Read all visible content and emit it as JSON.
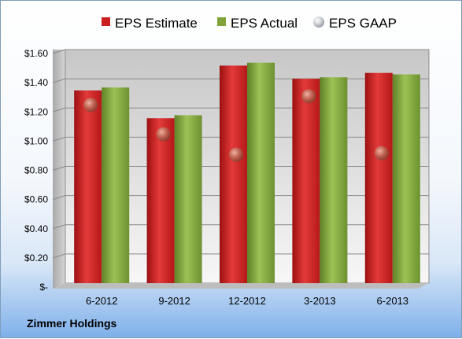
{
  "company": "Zimmer Holdings",
  "chart_data": {
    "type": "bar",
    "categories": [
      "6-2012",
      "9-2012",
      "12-2012",
      "3-2013",
      "6-2013"
    ],
    "series": [
      {
        "name": "EPS Estimate",
        "type": "bar",
        "color": "#cc1f1f",
        "values": [
          1.32,
          1.13,
          1.49,
          1.4,
          1.44
        ]
      },
      {
        "name": "EPS Actual",
        "type": "bar",
        "color": "#7fa33a",
        "values": [
          1.34,
          1.15,
          1.51,
          1.41,
          1.43
        ]
      },
      {
        "name": "EPS GAAP",
        "type": "scatter",
        "color": "#b3b9c2",
        "values": [
          1.22,
          1.02,
          0.88,
          1.28,
          0.89
        ]
      }
    ],
    "ylim": [
      0,
      1.6
    ],
    "yticks": [
      0,
      0.2,
      0.4,
      0.6,
      0.8,
      1.0,
      1.2,
      1.4,
      1.6
    ],
    "ytick_labels": [
      "$-",
      "$0.20",
      "$0.40",
      "$0.60",
      "$0.80",
      "$1.00",
      "$1.20",
      "$1.40",
      "$1.60"
    ],
    "grid": true,
    "legend_position": "top"
  }
}
